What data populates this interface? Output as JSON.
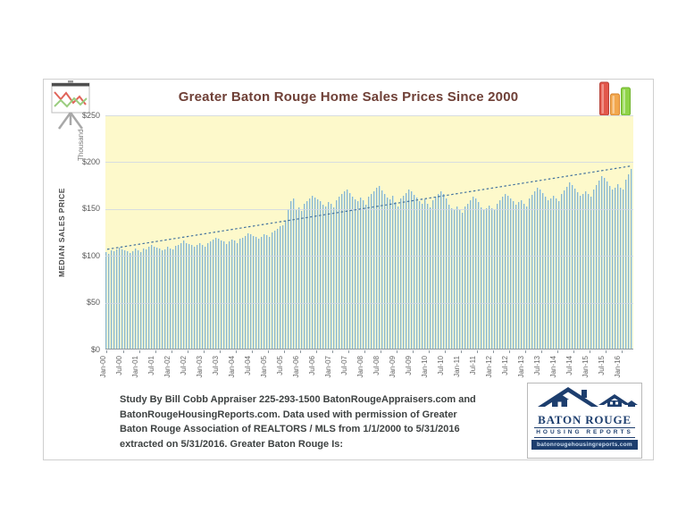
{
  "chart_data": {
    "type": "bar",
    "title": "Greater Baton Rouge Home Sales Prices Since 2000",
    "y_axis_title": "MEDIAN SALES PRICE",
    "y_units_label": "Thousand",
    "ylim": [
      0,
      250
    ],
    "grid": "horizontal",
    "plot_bg": "#fdf9cb",
    "bar_color_light": "#b7dce6",
    "bar_color_dark": "#628fa2",
    "y_ticks": [
      {
        "label": "$250",
        "value": 250
      },
      {
        "label": "$200",
        "value": 200
      },
      {
        "label": "$150",
        "value": 150
      },
      {
        "label": "$100",
        "value": 100
      },
      {
        "label": "$50",
        "value": 50
      },
      {
        "label": "$0",
        "value": 0
      }
    ],
    "gridline_values": [
      250,
      200,
      150,
      100,
      50
    ],
    "x_tick_labels": [
      "Jan-00",
      "Jul-00",
      "Jan-01",
      "Jul-01",
      "Jan-02",
      "Jul-02",
      "Jan-03",
      "Jul-03",
      "Jan-04",
      "Jul-04",
      "Jan-05",
      "Jul-05",
      "Jan-06",
      "Jul-06",
      "Jan-07",
      "Jul-07",
      "Jan-08",
      "Jul-08",
      "Jan-09",
      "Jul-09",
      "Jan-10",
      "Jul-10",
      "Jan-11",
      "Jul-11",
      "Jan-12",
      "Jul-12",
      "Jan-13",
      "Jul-13",
      "Jan-14",
      "Jul-14",
      "Jan-15",
      "Jul-15",
      "Jan-16"
    ],
    "x_tick_interval_months": 6,
    "start_month": "Jan-00",
    "end_month": "May-16",
    "values": [
      104,
      102,
      106,
      105,
      107,
      109,
      107,
      106,
      105,
      103,
      105,
      108,
      106,
      104,
      108,
      107,
      110,
      112,
      110,
      109,
      108,
      106,
      107,
      110,
      108,
      107,
      111,
      112,
      114,
      116,
      114,
      113,
      112,
      110,
      112,
      114,
      112,
      110,
      114,
      115,
      117,
      119,
      118,
      116,
      115,
      113,
      115,
      117,
      116,
      114,
      118,
      119,
      121,
      124,
      123,
      121,
      120,
      118,
      120,
      123,
      122,
      120,
      125,
      127,
      129,
      132,
      133,
      137,
      150,
      158,
      161,
      149,
      152,
      148,
      156,
      158,
      161,
      164,
      162,
      160,
      158,
      155,
      153,
      157,
      156,
      152,
      159,
      163,
      166,
      169,
      171,
      167,
      163,
      160,
      158,
      162,
      159,
      155,
      163,
      166,
      169,
      173,
      175,
      170,
      166,
      162,
      160,
      164,
      157,
      153,
      161,
      164,
      167,
      171,
      169,
      165,
      162,
      158,
      156,
      160,
      156,
      152,
      159,
      163,
      166,
      169,
      166,
      161,
      155,
      151,
      149,
      153,
      149,
      146,
      153,
      156,
      159,
      163,
      161,
      157,
      152,
      149,
      151,
      154,
      151,
      149,
      156,
      159,
      163,
      166,
      164,
      161,
      158,
      155,
      157,
      159,
      156,
      153,
      161,
      165,
      169,
      173,
      171,
      167,
      163,
      159,
      161,
      164,
      161,
      158,
      166,
      170,
      174,
      178,
      176,
      172,
      168,
      164,
      166,
      169,
      166,
      163,
      171,
      176,
      180,
      185,
      183,
      179,
      175,
      171,
      173,
      177,
      173,
      171,
      181,
      187,
      193
    ],
    "trendline": {
      "style": "dotted",
      "start_value": 107,
      "end_value": 196,
      "color": "#44739e"
    }
  },
  "icons": {
    "top_left": "line-chart-easel",
    "top_right": "bar-chart",
    "top_right_bar_colors": [
      "#e2574b",
      "#f2a74e",
      "#8fd348"
    ]
  },
  "footer": {
    "lines": [
      "Study By Bill Cobb Appraiser 225-293-1500 BatonRougeAppraisers.com and",
      "BatonRougeHousingReports.com.  Data used with permission of Greater",
      "Baton Rouge Association of REALTORS / MLS from 1/1/2000 to 5/31/2016",
      "extracted on 5/31/2016. Greater Baton Rouge Is:"
    ]
  },
  "logo": {
    "line1": "BATON ROUGE",
    "line2": "HOUSING REPORTS",
    "url": "batonrougehousingreports.com",
    "navy": "#1d3e6e"
  }
}
